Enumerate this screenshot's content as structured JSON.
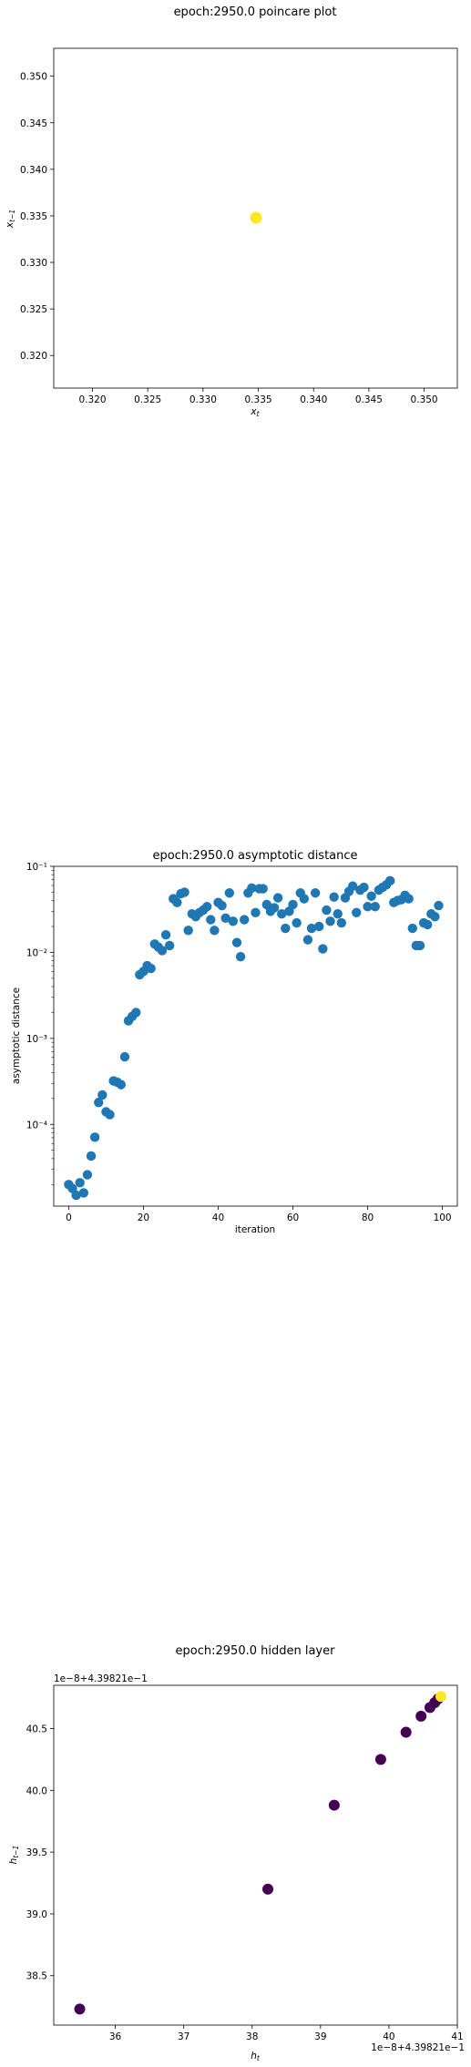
{
  "chart_data": [
    {
      "type": "scatter",
      "title": "epoch:2950.0 poincare plot",
      "xlabel_base": "x",
      "xlabel_sub": "t",
      "ylabel_base": "x",
      "ylabel_sub": "t−1",
      "xlim": [
        0.3165,
        0.353
      ],
      "ylim": [
        0.3165,
        0.353
      ],
      "xticks": [
        0.32,
        0.325,
        0.33,
        0.335,
        0.34,
        0.345,
        0.35
      ],
      "xtick_labels": [
        "0.320",
        "0.325",
        "0.330",
        "0.335",
        "0.340",
        "0.345",
        "0.350"
      ],
      "yticks": [
        0.32,
        0.325,
        0.33,
        0.335,
        0.34,
        0.345,
        0.35
      ],
      "ytick_labels": [
        "0.320",
        "0.325",
        "0.330",
        "0.335",
        "0.340",
        "0.345",
        "0.350"
      ],
      "points": [
        {
          "x": 0.3348,
          "y": 0.3348
        }
      ],
      "point_color": "#fde725"
    },
    {
      "type": "scatter",
      "title": "epoch:2950.0 asymptotic distance",
      "xlabel": "iteration",
      "ylabel": "asymptotic distance",
      "yscale": "log",
      "xlim": [
        -4,
        104
      ],
      "ylim_log10": [
        -4.95,
        -1.0
      ],
      "xticks": [
        0,
        20,
        40,
        60,
        80,
        100
      ],
      "xtick_labels": [
        "0",
        "20",
        "40",
        "60",
        "80",
        "100"
      ],
      "yticks_exp": [
        -4,
        -3,
        -2,
        -1
      ],
      "ytick_labels": [
        "10⁻⁴",
        "10⁻³",
        "10⁻²",
        "10⁻¹"
      ],
      "x": [
        0,
        1,
        2,
        3,
        4,
        5,
        6,
        7,
        8,
        9,
        10,
        11,
        12,
        13,
        14,
        15,
        16,
        17,
        18,
        19,
        20,
        21,
        22,
        23,
        24,
        25,
        26,
        27,
        28,
        29,
        30,
        31,
        32,
        33,
        34,
        35,
        36,
        37,
        38,
        39,
        40,
        41,
        42,
        43,
        44,
        45,
        46,
        47,
        48,
        49,
        50,
        51,
        52,
        53,
        54,
        55,
        56,
        57,
        58,
        59,
        60,
        61,
        62,
        63,
        64,
        65,
        66,
        67,
        68,
        69,
        70,
        71,
        72,
        73,
        74,
        75,
        76,
        77,
        78,
        79,
        80,
        81,
        82,
        83,
        84,
        85,
        86,
        87,
        88,
        89,
        90,
        91,
        92,
        93,
        94,
        95,
        96,
        97,
        98,
        99
      ],
      "y": [
        2e-05,
        1.8e-05,
        1.5e-05,
        2.1e-05,
        1.6e-05,
        2.6e-05,
        4.3e-05,
        7.1e-05,
        0.00018,
        0.00022,
        0.00014,
        0.00013,
        0.00032,
        0.00031,
        0.00029,
        0.00061,
        0.0016,
        0.0018,
        0.002,
        0.0055,
        0.006,
        0.007,
        0.0065,
        0.0125,
        0.0115,
        0.0105,
        0.016,
        0.012,
        0.042,
        0.038,
        0.048,
        0.05,
        0.018,
        0.028,
        0.026,
        0.029,
        0.031,
        0.034,
        0.024,
        0.018,
        0.038,
        0.035,
        0.025,
        0.049,
        0.023,
        0.013,
        0.0089,
        0.024,
        0.049,
        0.056,
        0.029,
        0.055,
        0.055,
        0.036,
        0.03,
        0.033,
        0.043,
        0.028,
        0.019,
        0.03,
        0.036,
        0.022,
        0.049,
        0.042,
        0.014,
        0.019,
        0.049,
        0.02,
        0.011,
        0.031,
        0.023,
        0.044,
        0.028,
        0.022,
        0.043,
        0.051,
        0.059,
        0.029,
        0.053,
        0.057,
        0.034,
        0.045,
        0.034,
        0.053,
        0.057,
        0.061,
        0.068,
        0.038,
        0.04,
        0.041,
        0.046,
        0.042,
        0.019,
        0.012,
        0.012,
        0.022,
        0.021,
        0.028,
        0.026,
        0.035
      ],
      "point_color": "#1f77b4"
    },
    {
      "type": "scatter",
      "title": "epoch:2950.0 hidden layer",
      "xlabel_base": "h",
      "xlabel_sub": "t",
      "ylabel_base": "h",
      "ylabel_sub": "t−1",
      "offset_text": "1e−8+4.39821e−1",
      "xlim": [
        35.1,
        41.0
      ],
      "ylim": [
        38.1,
        40.85
      ],
      "xticks": [
        36,
        37,
        38,
        39,
        40,
        41
      ],
      "xtick_labels": [
        "36",
        "37",
        "38",
        "39",
        "40",
        "41"
      ],
      "yticks": [
        38.5,
        39.0,
        39.5,
        40.0,
        40.5
      ],
      "ytick_labels": [
        "38.5",
        "39.0",
        "39.5",
        "40.0",
        "40.5"
      ],
      "points": [
        {
          "x": 35.48,
          "y": 38.23,
          "color": "#440154"
        },
        {
          "x": 38.23,
          "y": 39.2,
          "color": "#440154"
        },
        {
          "x": 39.2,
          "y": 39.88,
          "color": "#440154"
        },
        {
          "x": 39.88,
          "y": 40.25,
          "color": "#440154"
        },
        {
          "x": 40.25,
          "y": 40.47,
          "color": "#440154"
        },
        {
          "x": 40.47,
          "y": 40.6,
          "color": "#440154"
        },
        {
          "x": 40.6,
          "y": 40.67,
          "color": "#440154"
        },
        {
          "x": 40.67,
          "y": 40.71,
          "color": "#440154"
        },
        {
          "x": 40.72,
          "y": 40.74,
          "color": "#440154"
        },
        {
          "x": 40.76,
          "y": 40.76,
          "color": "#fde725"
        }
      ]
    }
  ]
}
